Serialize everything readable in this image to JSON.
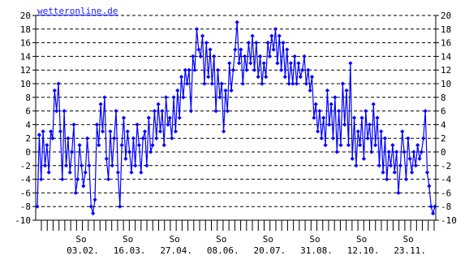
{
  "source_label": "wetteronline.de",
  "colors": {
    "series": "#0000ff",
    "axis": "#000000",
    "background": "#ffffff",
    "watermark": "#1a1aff"
  },
  "chart_data": {
    "type": "line",
    "title": "",
    "xlabel": "",
    "ylabel": "",
    "ylim": [
      -10,
      20
    ],
    "y_ticks": [
      -10,
      -8,
      -6,
      -4,
      -2,
      0,
      2,
      4,
      6,
      8,
      10,
      12,
      14,
      16,
      18,
      20
    ],
    "grid": "horizontal dashed",
    "date_labels": [
      "03.02.",
      "16.03.",
      "27.04.",
      "08.06.",
      "20.07.",
      "31.08.",
      "12.10.",
      "23.11."
    ],
    "weekday_label": "So",
    "weekday_label_count": 8,
    "x_tick_count": 68,
    "series": [
      {
        "values": [
          -8,
          2.5,
          -4,
          3,
          -2,
          1,
          -3,
          3,
          2,
          9,
          6,
          10,
          3,
          -4,
          6,
          -2,
          2,
          -3,
          0,
          4,
          -6,
          -4,
          1,
          -2,
          -5,
          -3,
          2,
          -2,
          -8,
          -9,
          -7,
          4,
          1,
          7,
          3,
          8,
          -1,
          -4,
          3,
          -2,
          2,
          6,
          -3,
          -8,
          1,
          5,
          -1,
          3,
          0,
          -3,
          2,
          -2,
          4,
          1,
          -3,
          2,
          3,
          -2,
          5,
          0,
          1,
          6,
          2,
          7,
          3,
          6,
          1,
          8,
          4,
          5,
          2,
          8,
          3,
          9,
          5,
          11,
          8,
          12,
          10,
          12,
          6,
          14,
          12,
          18,
          15,
          14,
          17,
          10,
          16,
          11,
          15,
          10,
          14,
          6,
          12,
          8,
          10,
          3,
          9,
          6,
          13,
          9,
          12,
          15,
          19,
          13,
          15,
          10,
          14,
          12,
          16,
          13,
          17,
          12,
          16,
          11,
          14,
          10,
          13,
          11,
          16,
          14,
          17,
          15,
          18,
          13,
          17,
          12,
          16,
          11,
          15,
          10,
          13,
          10,
          14,
          10,
          13,
          11,
          12,
          14,
          10,
          12,
          9,
          11,
          5,
          7,
          3,
          6,
          2,
          5,
          1,
          9,
          4,
          7,
          2,
          8,
          0,
          6,
          1,
          10,
          4,
          9,
          1,
          13,
          -1,
          5,
          -2,
          3,
          1,
          5,
          -1,
          6,
          2,
          4,
          0,
          7,
          1,
          5,
          -2,
          3,
          -3,
          2,
          -4,
          0,
          -2,
          1,
          -3,
          0,
          -6,
          -2,
          3,
          0,
          -4,
          2,
          -1,
          -3,
          0,
          -2,
          1,
          -1,
          0,
          2,
          6,
          -3,
          -5,
          -8,
          -9,
          -8
        ]
      }
    ]
  }
}
